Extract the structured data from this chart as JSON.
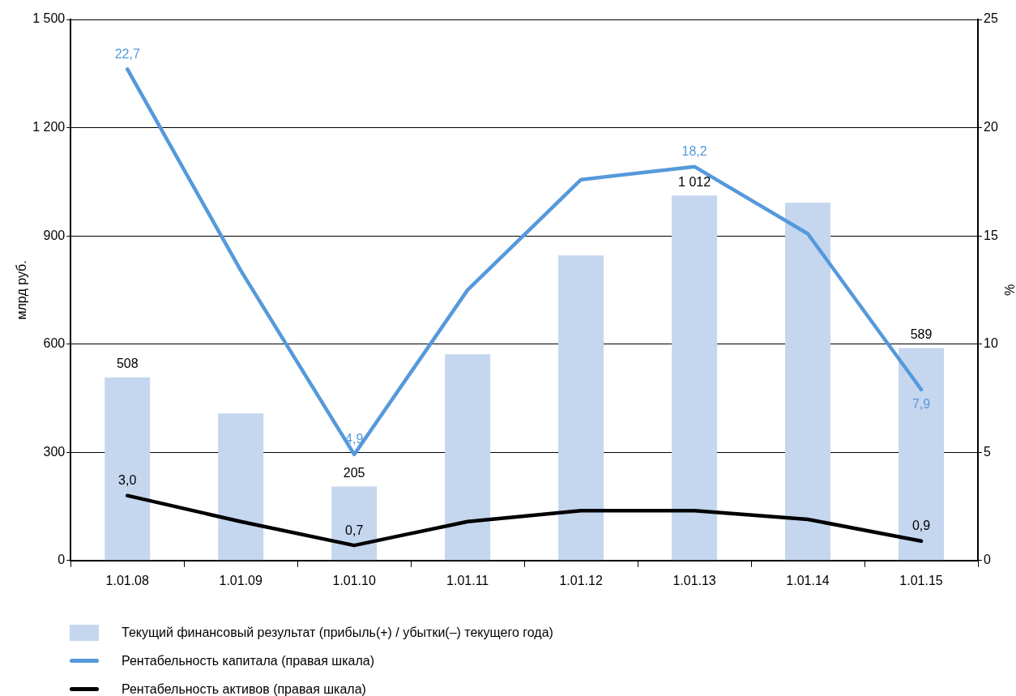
{
  "chart_data": {
    "type": "bar",
    "categories": [
      "1.01.08",
      "1.01.09",
      "1.01.10",
      "1.01.11",
      "1.01.12",
      "1.01.13",
      "1.01.14",
      "1.01.15"
    ],
    "ylabel": "млрд руб.",
    "y2label": "%",
    "ylim": [
      0,
      1500
    ],
    "yticks": [
      0,
      300,
      600,
      900,
      {
        "value": 1200,
        "label": "1 200"
      },
      {
        "value": 1500,
        "label": "1 500"
      }
    ],
    "y2lim": [
      0,
      25
    ],
    "y2ticks": [
      0,
      5,
      10,
      15,
      20,
      25
    ],
    "grid": "y",
    "legend": "bottom",
    "marker": "none",
    "series": [
      {
        "name": "Текущий финансовый результат (прибыль(+) / убытки(–) текущего года)",
        "color": "#c5d6ef",
        "values": [
          508,
          408,
          205,
          572,
          846,
          1012,
          992,
          589
        ],
        "value_labels": [
          "508",
          null,
          "205",
          null,
          null,
          "1 012",
          null,
          "589"
        ]
      },
      {
        "name": "Рентабельность капитала (правая шкала)",
        "type": "line",
        "axis": "y2",
        "color": "#5599db",
        "values": [
          22.7,
          13.4,
          4.9,
          12.5,
          17.6,
          18.2,
          15.1,
          7.9
        ],
        "value_labels": [
          "22,7",
          null,
          "4,9",
          null,
          null,
          "18,2",
          null,
          "7,9"
        ]
      },
      {
        "name": "Рентабельность активов (правая шкала)",
        "type": "line",
        "axis": "y2",
        "color": "#000000",
        "values": [
          3.0,
          1.8,
          0.7,
          1.8,
          2.3,
          2.3,
          1.9,
          0.9
        ],
        "value_labels": [
          "3,0",
          null,
          "0,7",
          null,
          null,
          null,
          null,
          "0,9"
        ]
      }
    ]
  }
}
